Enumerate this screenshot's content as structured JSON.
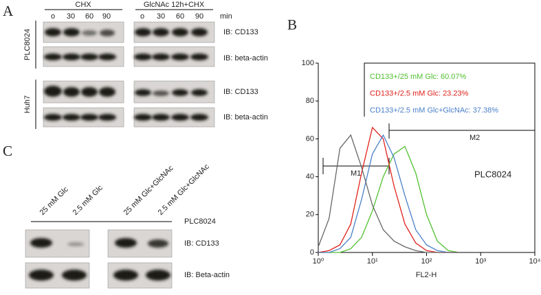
{
  "panel_a": {
    "label": "A",
    "groups": [
      "CHX",
      "GlcNAc 12h+CHX"
    ],
    "lanes": [
      "o",
      "30",
      "60",
      "90",
      "o",
      "30",
      "60",
      "90"
    ],
    "unit": "min",
    "cell_lines": [
      "PLC8024",
      "Huh7"
    ],
    "blot_labels": [
      "IB: CD133",
      "IB: beta-actin",
      "IB: CD133",
      "IB: beta-actin"
    ]
  },
  "panel_b": {
    "label": "B",
    "type": "line",
    "xlabel": "FL2-H",
    "ylim": [
      0,
      100
    ],
    "yticks": [
      0,
      20,
      40,
      60,
      80,
      100
    ],
    "xlim": [
      0,
      4
    ],
    "xticks": [
      {
        "value": 0,
        "label": "10⁰"
      },
      {
        "value": 1,
        "label": "10¹"
      },
      {
        "value": 2,
        "label": "10²"
      },
      {
        "value": 3,
        "label": "10³"
      },
      {
        "value": 4,
        "label": "10⁴"
      }
    ],
    "x": [
      0,
      0.2,
      0.4,
      0.6,
      0.8,
      1.0,
      1.2,
      1.4,
      1.6,
      1.8,
      2.0,
      2.2,
      2.4,
      2.6
    ],
    "series": [
      {
        "name": "CD133+/25 mM Glc: 60.07%",
        "color": "#4fc02e",
        "values": [
          0,
          0,
          0,
          2,
          8,
          22,
          40,
          52,
          56,
          42,
          20,
          6,
          1,
          0
        ]
      },
      {
        "name": "CD133+/2.5 mM Glc: 23.23%",
        "color": "#e0201a",
        "values": [
          0,
          1,
          4,
          15,
          42,
          66,
          60,
          35,
          15,
          5,
          1,
          0,
          0,
          0
        ]
      },
      {
        "name": "CD133+/2.5 mM Glc+GlcNAc: 37.38%",
        "color": "#4a7fc8",
        "values": [
          0,
          0,
          2,
          8,
          28,
          52,
          62,
          50,
          30,
          12,
          4,
          1,
          0,
          0
        ]
      },
      {
        "color": "#666666",
        "values": [
          3,
          18,
          55,
          62,
          45,
          25,
          12,
          6,
          3,
          1,
          0,
          0,
          0,
          0
        ]
      }
    ],
    "gates": [
      "M1",
      "M2"
    ],
    "annotation": "PLC8024"
  },
  "panel_c": {
    "label": "C",
    "lanes": [
      "25 mM Glc",
      "2.5 mM Glc",
      "25 mM Glc+GlcNAc",
      "2.5 mM Glc+GlcNAc"
    ],
    "cell_line": "PLC8024",
    "blot_labels": [
      "IB: CD133",
      "IB: Beta-actin"
    ]
  }
}
